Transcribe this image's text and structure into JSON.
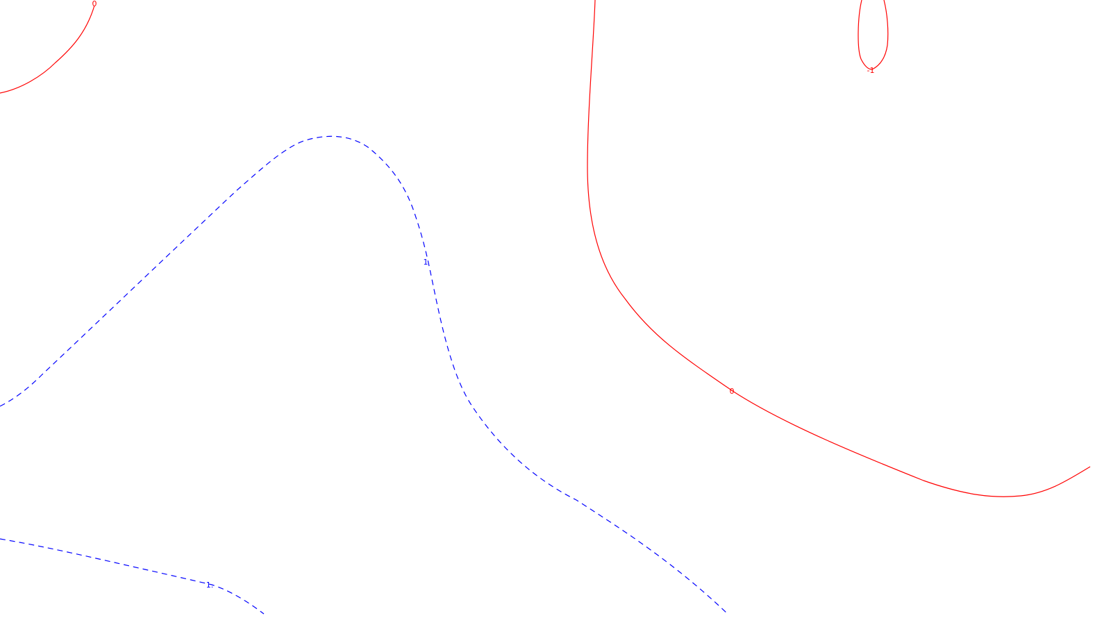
{
  "chart_data": {
    "type": "contour",
    "title": "",
    "xlabel": "",
    "ylabel": "",
    "grid": false,
    "legend": false,
    "colors": {
      "positive": "#0000ff",
      "zero": "#ff0000",
      "negative": "#ff0000",
      "background": "#ffffff"
    },
    "contours": [
      {
        "level": 0,
        "label": "0",
        "color": "#ff0000",
        "dashed": false
      },
      {
        "level": 0,
        "label": "0",
        "color": "#ff0000",
        "dashed": false
      },
      {
        "level": -1,
        "label": "-1",
        "color": "#ff0000",
        "dashed": false
      },
      {
        "level": 1,
        "label": "1",
        "color": "#0000ff",
        "dashed": true
      },
      {
        "level": 1,
        "label": "1.",
        "color": "#0000ff",
        "dashed": true
      }
    ]
  }
}
